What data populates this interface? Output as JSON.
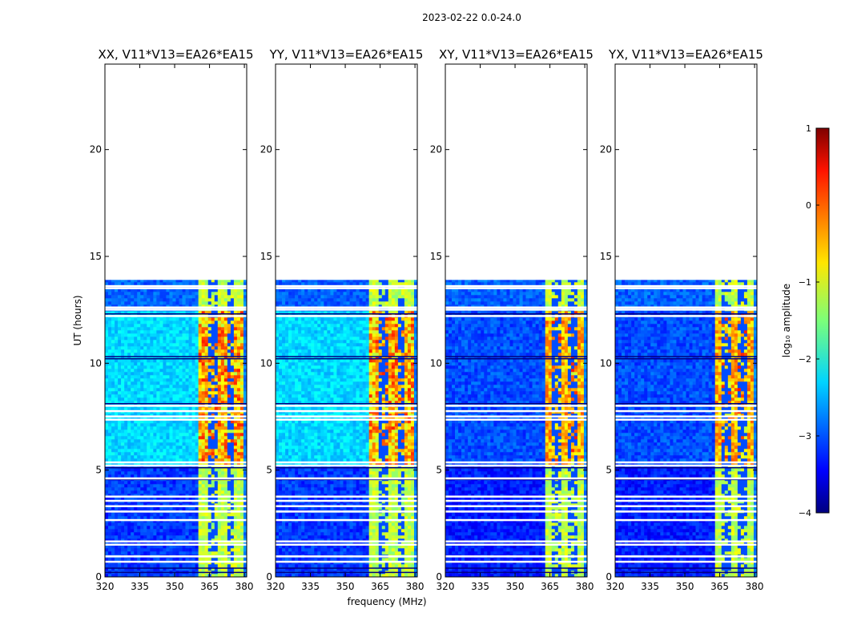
{
  "suptitle": "2023-02-22 0.0-24.0",
  "chart_data": {
    "type": "heatmap",
    "xlabel": "frequency (MHz)",
    "ylabel": "UT (hours)",
    "xlim": [
      320,
      381
    ],
    "ylim": [
      0,
      24
    ],
    "xticks": [
      320,
      335,
      350,
      365,
      380
    ],
    "yticks": [
      0,
      5,
      10,
      15,
      20
    ],
    "data_extent_hours": [
      0,
      13.9
    ],
    "panels": [
      {
        "title": "XX, V11*V13=EA26*EA15",
        "name": "XX"
      },
      {
        "title": "YY, V11*V13=EA26*EA15",
        "name": "YY"
      },
      {
        "title": "XY, V11*V13=EA26*EA15",
        "name": "XY"
      },
      {
        "title": "YX, V11*V13=EA26*EA15",
        "name": "YX"
      }
    ],
    "colorbar": {
      "label": "log₁₀ amplitude",
      "min": -4,
      "max": 1,
      "ticks": [
        1,
        0,
        -1,
        -2,
        -3,
        -4
      ],
      "tick_labels": [
        "1",
        "0",
        "−1",
        "−2",
        "−3",
        "−4"
      ],
      "colormap": "jet"
    }
  }
}
